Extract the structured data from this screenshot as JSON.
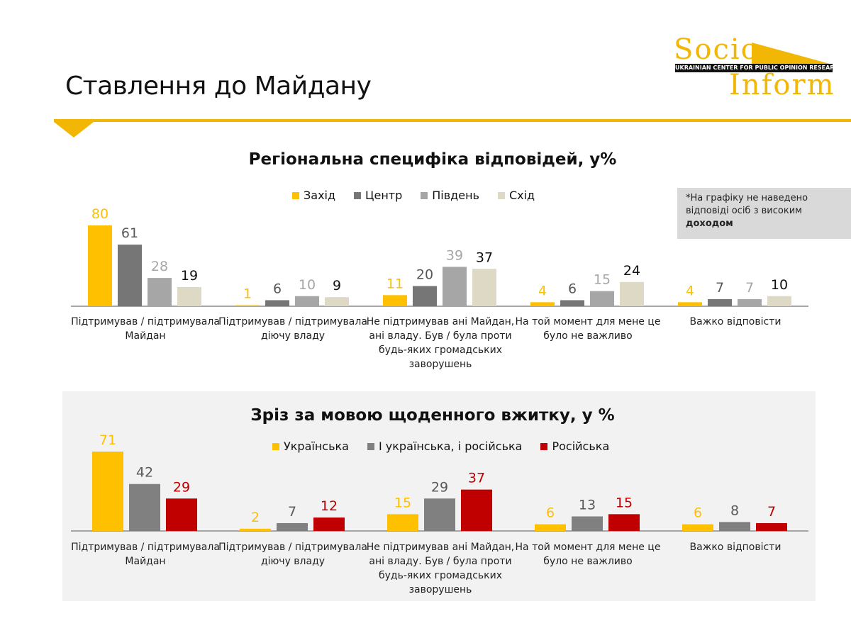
{
  "page": {
    "title": "Ставлення до Майдану"
  },
  "logo": {
    "word1": "Socio",
    "word2": "Inform",
    "band": "UKRAINIAN CENTER   FOR PUBLIC OPINION RESEARCH"
  },
  "note": {
    "line1": "*На графіку не наведено",
    "line2": "відповіді осіб з високим",
    "line3": "доходом"
  },
  "colors": {
    "accent": "#f2b705",
    "zahid": "#ffc000",
    "tsentr": "#767676",
    "pivden": "#a6a6a6",
    "skhid": "#ddd9c4",
    "ukr": "#ffc000",
    "both": "#808080",
    "rus": "#c00000"
  },
  "chart_data": [
    {
      "type": "bar",
      "title": "Регіональна специфіка відповідей, у%",
      "categories": [
        [
          "Підтримував / підтримувала",
          "Майдан"
        ],
        [
          "Підтримував / підтримувала",
          "діючу владу"
        ],
        [
          "Не підтримував ані Майдан,",
          "ані владу. Був / була проти",
          "будь-яких громадських",
          "заворушень"
        ],
        [
          "На той момент для мене це",
          "було не важливо"
        ],
        [
          "Важко відповісти"
        ]
      ],
      "series": [
        {
          "name": "Захід",
          "color": "#ffc000",
          "label_color": "#ffc000",
          "values": [
            80,
            1,
            11,
            4,
            4
          ]
        },
        {
          "name": "Центр",
          "color": "#767676",
          "label_color": "#595959",
          "values": [
            61,
            6,
            20,
            6,
            7
          ]
        },
        {
          "name": "Південь",
          "color": "#a6a6a6",
          "label_color": "#a6a6a6",
          "values": [
            28,
            10,
            39,
            15,
            7
          ]
        },
        {
          "name": "Схід",
          "color": "#ddd9c4",
          "label_color": "#111111",
          "values": [
            19,
            9,
            37,
            24,
            10
          ]
        }
      ],
      "ylim": [
        0,
        80
      ],
      "legend": "top"
    },
    {
      "type": "bar",
      "title": "Зріз за мовою щоденного вжитку, у %",
      "categories": [
        [
          "Підтримував / підтримувала",
          "Майдан"
        ],
        [
          "Підтримував / підтримувала",
          "діючу владу"
        ],
        [
          "Не підтримував ані Майдан,",
          "ані владу. Був / була проти",
          "будь-яких громадських",
          "заворушень"
        ],
        [
          "На той момент для мене це",
          "було не важливо"
        ],
        [
          "Важко відповісти"
        ]
      ],
      "series": [
        {
          "name": "Українська",
          "color": "#ffc000",
          "label_color": "#ffc000",
          "values": [
            71,
            2,
            15,
            6,
            6
          ]
        },
        {
          "name": "І українська, і російська",
          "color": "#808080",
          "label_color": "#595959",
          "values": [
            42,
            7,
            29,
            13,
            8
          ]
        },
        {
          "name": "Російська",
          "color": "#c00000",
          "label_color": "#c00000",
          "values": [
            29,
            12,
            37,
            15,
            7
          ]
        }
      ],
      "ylim": [
        0,
        71
      ],
      "legend": "top"
    }
  ]
}
